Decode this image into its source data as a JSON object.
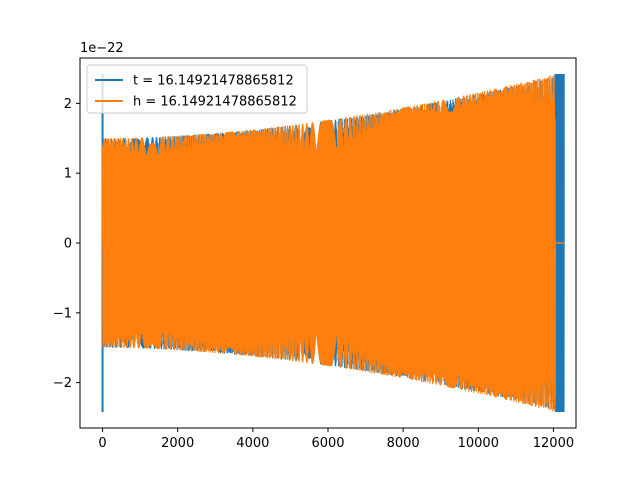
{
  "chart_data": {
    "type": "line",
    "title": "",
    "xlabel": "",
    "ylabel": "",
    "y_offset_label": "1e−22",
    "xlim": [
      -600,
      12600
    ],
    "ylim": [
      -2.65,
      2.65
    ],
    "grid": false,
    "legend_position": "top-left",
    "x_ticks": [
      {
        "value": 0,
        "label": "0"
      },
      {
        "value": 2000,
        "label": "2000"
      },
      {
        "value": 4000,
        "label": "4000"
      },
      {
        "value": 6000,
        "label": "6000"
      },
      {
        "value": 8000,
        "label": "8000"
      },
      {
        "value": 10000,
        "label": "10000"
      },
      {
        "value": 12000,
        "label": "12000"
      }
    ],
    "y_ticks": [
      {
        "value": -2,
        "label": "−2"
      },
      {
        "value": -1,
        "label": "−1"
      },
      {
        "value": 0,
        "label": "0"
      },
      {
        "value": 1,
        "label": "1"
      },
      {
        "value": 2,
        "label": "2"
      }
    ],
    "series": [
      {
        "name": "t = 16.14921478865812",
        "color": "#1f77b4",
        "x_start": 0,
        "x_end": 12280,
        "start_amplitude": 1.5,
        "end_amplitude": 2.42,
        "start_spike": 2.42
      },
      {
        "name": "h = 16.14921478865812",
        "color": "#ff7f0e",
        "x_start": 0,
        "x_end": 12050,
        "start_amplitude": 1.5,
        "end_amplitude": 2.42,
        "tail_x_end": 12280,
        "tail_value": 0
      }
    ]
  }
}
